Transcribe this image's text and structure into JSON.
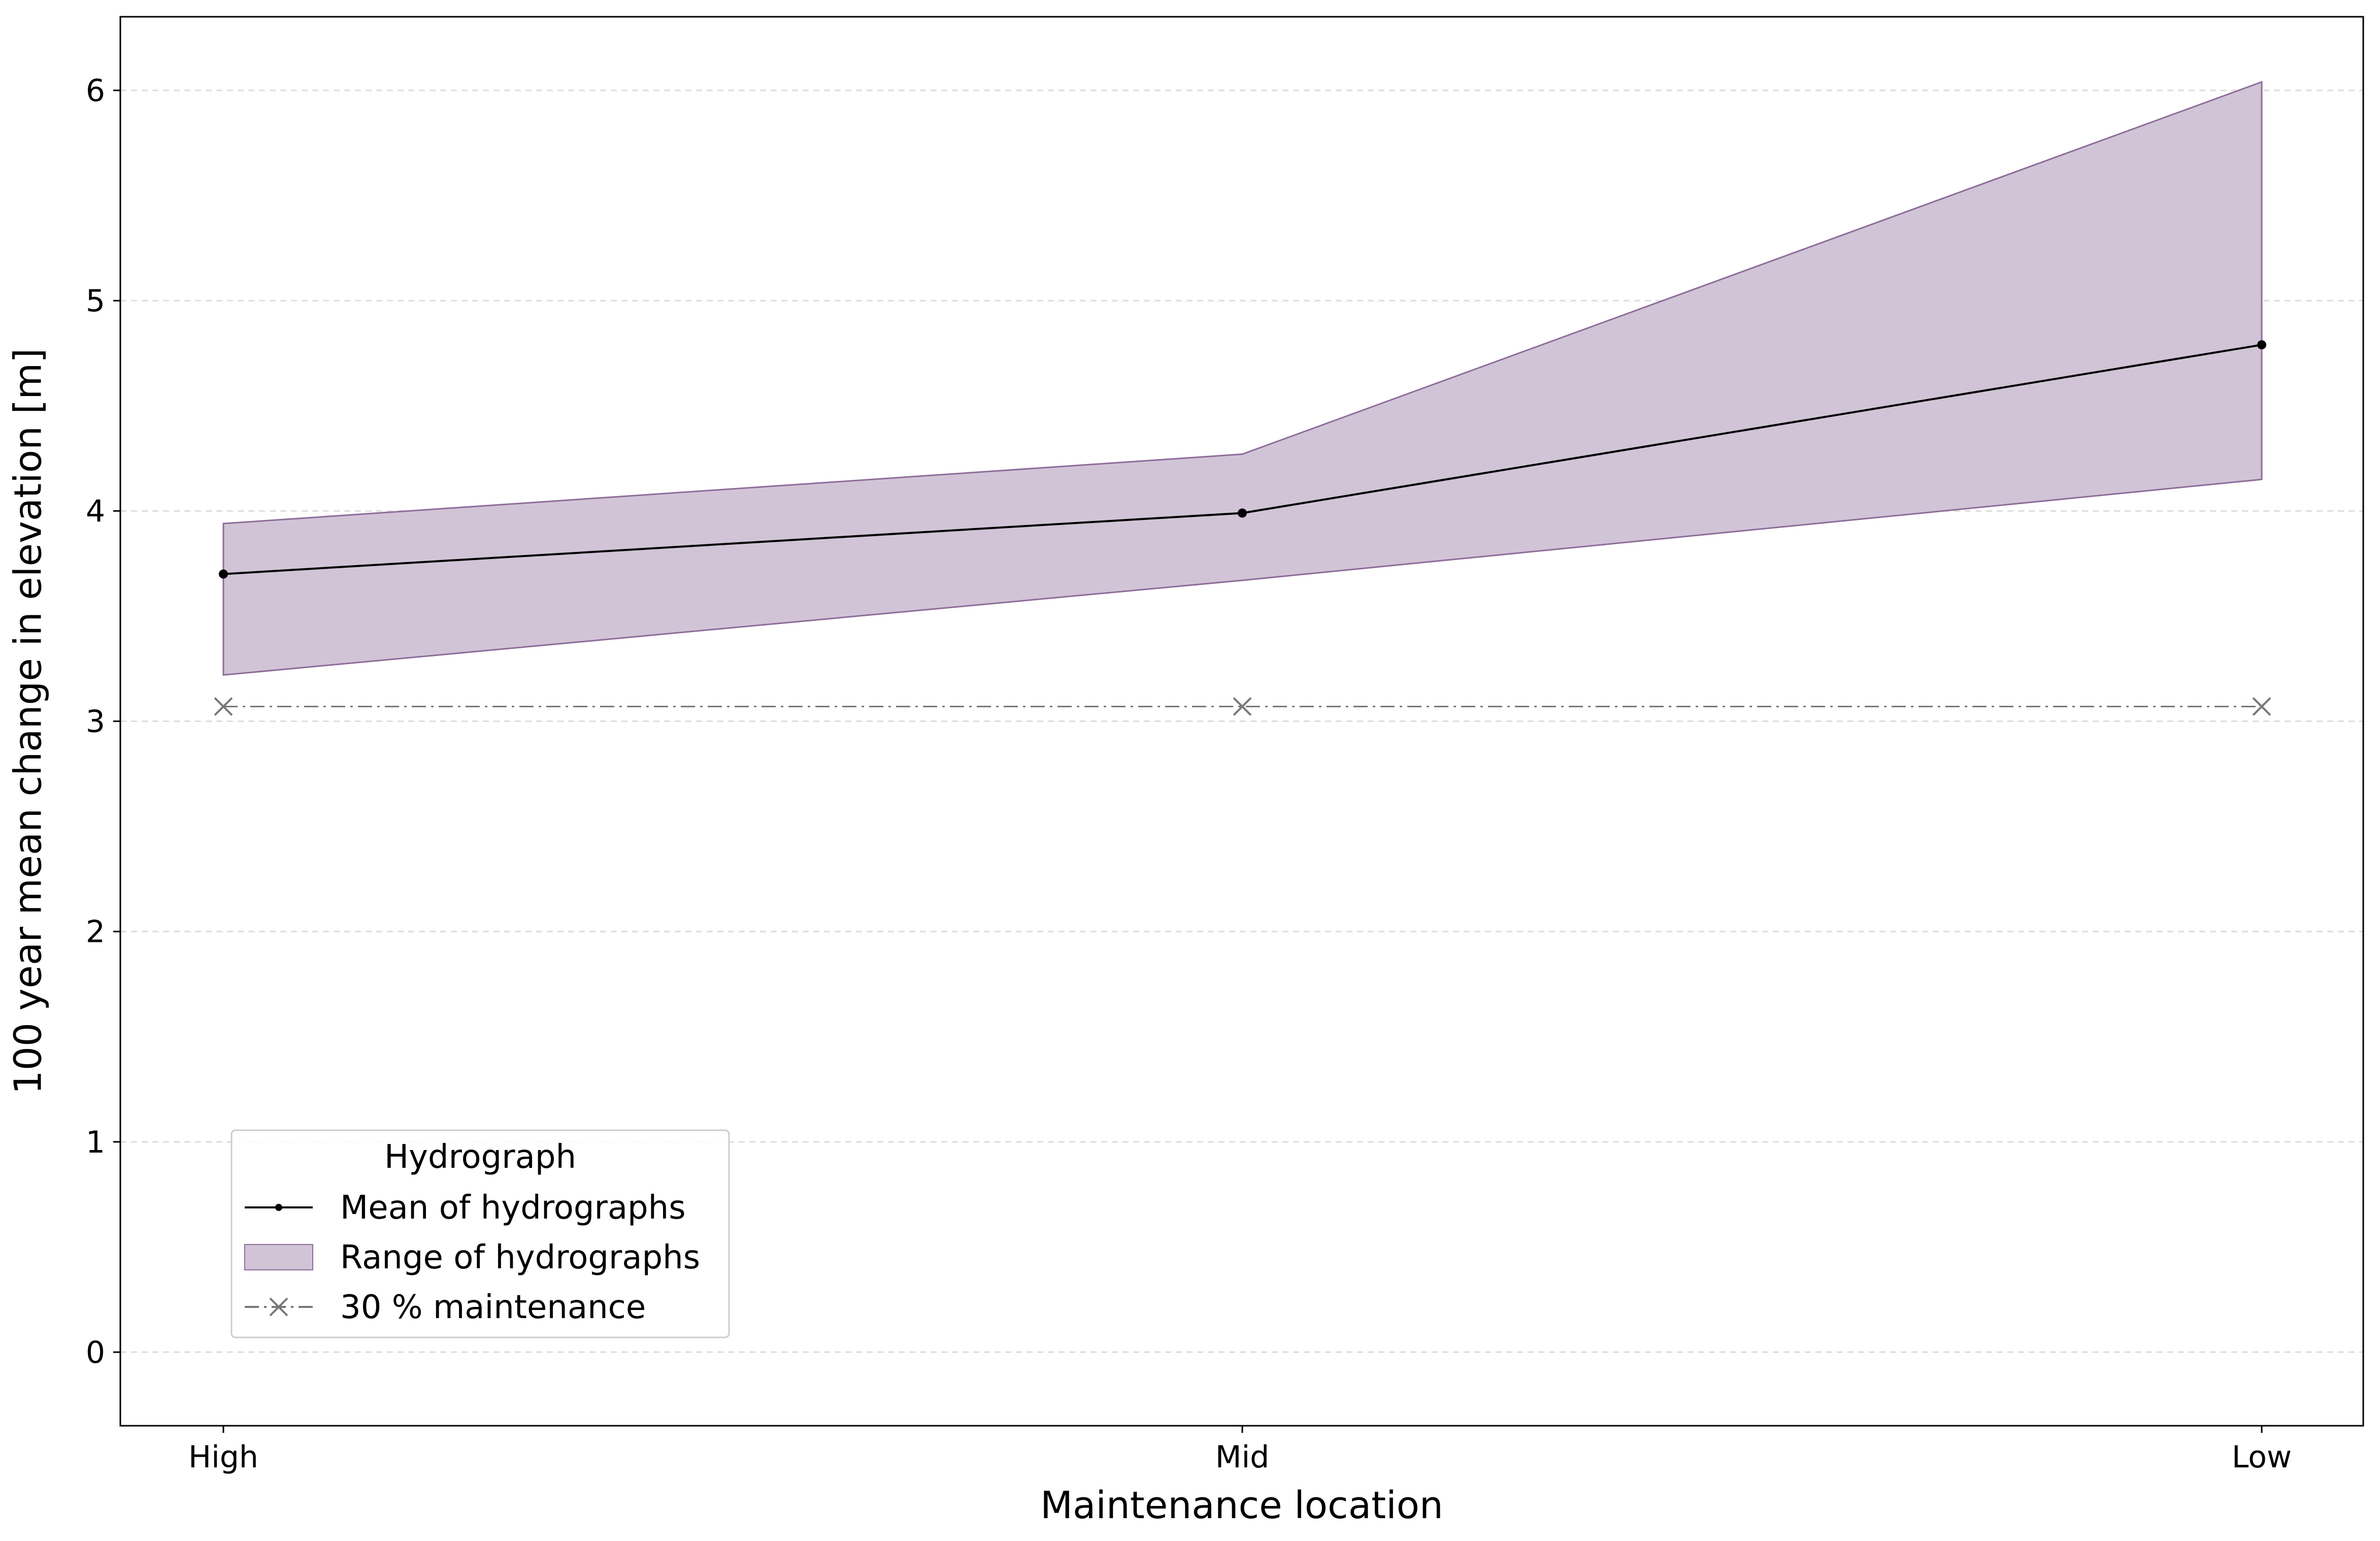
{
  "chart_data": {
    "type": "line",
    "xlabel": "Maintenance location",
    "ylabel": "100 year mean change in elevation [m]",
    "categories": [
      "High",
      "Mid",
      "Low"
    ],
    "ylim": [
      -0.35,
      6.35
    ],
    "yticks": [
      0,
      1,
      2,
      3,
      4,
      5,
      6
    ],
    "grid": true,
    "series": [
      {
        "name": "Mean of hydrographs",
        "kind": "line-marker",
        "values": [
          3.7,
          3.99,
          4.79
        ],
        "color": "#000000"
      },
      {
        "name": "Range of hydrographs",
        "kind": "band",
        "lower": [
          3.22,
          3.67,
          4.15
        ],
        "upper": [
          3.94,
          4.27,
          6.04
        ],
        "color": "#8e6c9a",
        "fill": "#d1c4d7"
      },
      {
        "name": "30 % maintenance",
        "kind": "dash-dot-x",
        "values": [
          3.07,
          3.07,
          3.07
        ],
        "color": "#777777"
      }
    ],
    "legend": {
      "title": "Hydrograph",
      "placement": "lower-left",
      "entries": [
        "Mean of hydrographs",
        "Range of hydrographs",
        "30 % maintenance"
      ]
    }
  }
}
